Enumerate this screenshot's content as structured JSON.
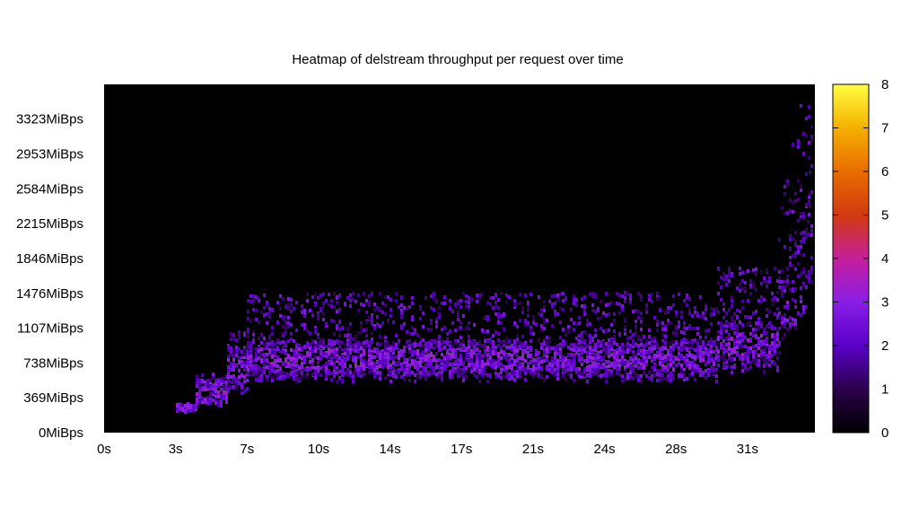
{
  "chart_data": {
    "type": "heatmap",
    "title": "Heatmap of delstream throughput per request over time",
    "xlabel": "",
    "ylabel": "",
    "x_ticks": [
      "0s",
      "3s",
      "7s",
      "10s",
      "14s",
      "17s",
      "21s",
      "24s",
      "28s",
      "31s"
    ],
    "x_tick_values": [
      0,
      3.5,
      7,
      10.5,
      14,
      17.5,
      21,
      24.5,
      28,
      31.5
    ],
    "xlim": [
      0,
      34.8
    ],
    "y_ticks": [
      "0MiBps",
      "369MiBps",
      "738MiBps",
      "1107MiBps",
      "1476MiBps",
      "1846MiBps",
      "2215MiBps",
      "2584MiBps",
      "2953MiBps",
      "3323MiBps"
    ],
    "y_tick_values": [
      0,
      369,
      738,
      1107,
      1476,
      1846,
      2215,
      2584,
      2953,
      3323
    ],
    "ylim": [
      0,
      3690
    ],
    "colorbar": {
      "ticks": [
        "0",
        "1",
        "2",
        "3",
        "4",
        "5",
        "6",
        "7",
        "8"
      ],
      "min": 0,
      "max": 8,
      "stops": [
        "#000000",
        "#2a004a",
        "#5a00c8",
        "#8a1ee6",
        "#c4209a",
        "#d23a10",
        "#e86d00",
        "#f5b000",
        "#ffff40"
      ]
    },
    "background_color": "#000000",
    "grid": false,
    "density_profile": {
      "description_units": "time in s, throughput in MiBps",
      "segments": [
        {
          "t": [
            3.5,
            4.5
          ],
          "low": 240,
          "mode": 280,
          "high": 340,
          "count": 1
        },
        {
          "t": [
            4.5,
            6
          ],
          "low": 300,
          "mode": 450,
          "high": 650,
          "count": 1.5
        },
        {
          "t": [
            6,
            7
          ],
          "low": 420,
          "mode": 700,
          "high": 1100,
          "count": 2
        },
        {
          "t": [
            7,
            30
          ],
          "low": 560,
          "mode": 800,
          "high": 1500,
          "count": 2.5
        },
        {
          "t": [
            30,
            33
          ],
          "low": 650,
          "mode": 950,
          "high": 1800,
          "count": 2.5
        },
        {
          "t": [
            33,
            34.6
          ],
          "low": 850,
          "mode": 1300,
          "high": 2500,
          "count": 2
        }
      ]
    }
  }
}
